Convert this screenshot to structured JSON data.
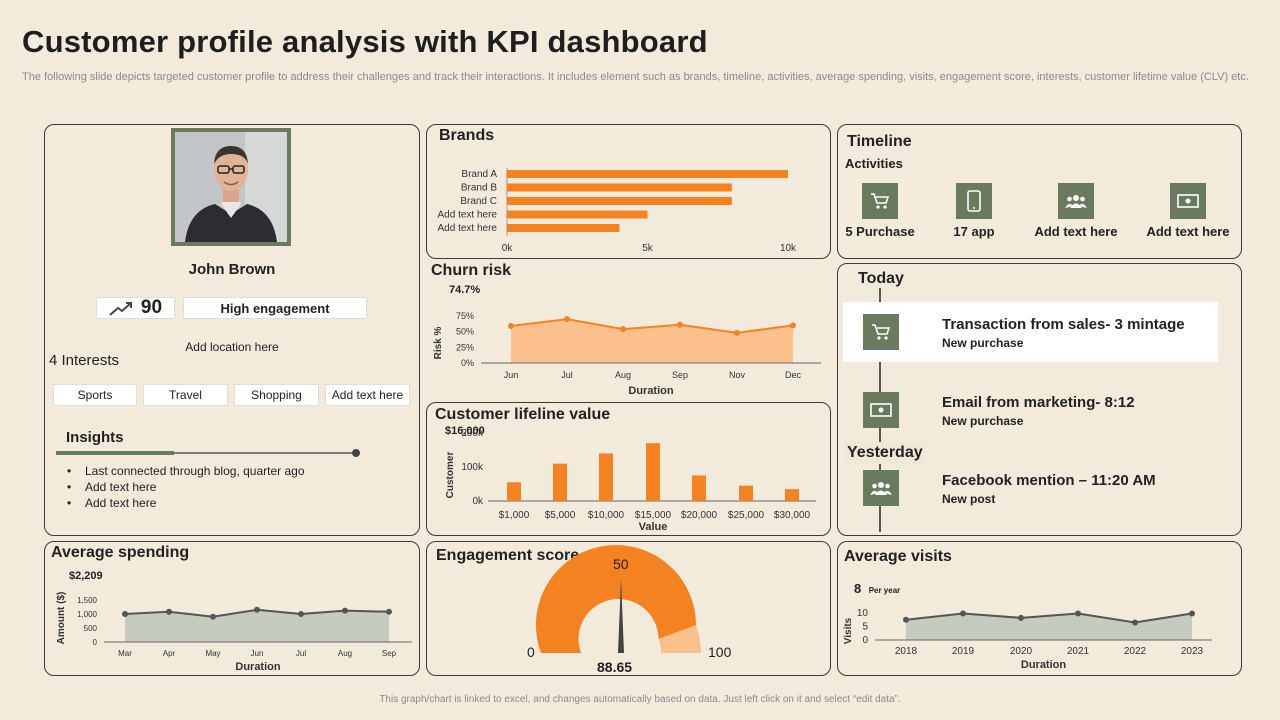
{
  "title": "Customer profile analysis with KPI dashboard",
  "subtitle": "The following slide depicts targeted customer profile to address their challenges and track their interactions. It includes element such as brands, timeline, activities, average spending, visits, engagement score, interests, customer lifetime value (CLV) etc.",
  "footer": "This graph/chart is linked to excel, and changes automatically based on data. Just left click on it and select “edit data”.",
  "profile": {
    "name": "John Brown",
    "score": "90",
    "engagement": "High engagement",
    "location": "Add location here",
    "interests_title": "4 Interests",
    "interests": [
      "Sports",
      "Travel",
      "Shopping",
      "Add text here"
    ],
    "insights_title": "Insights",
    "insights": [
      "Last connected through  blog, quarter ago",
      "Add text here",
      "Add text here"
    ]
  },
  "colors": {
    "accent": "#f58220",
    "olive": "#6a7a5e",
    "bg": "#f2ebdc",
    "area_light": "#fcc08c",
    "area_grey": "#c5cbbd"
  },
  "brands": {
    "title": "Brands",
    "chart_data": {
      "type": "bar",
      "categories": [
        "Brand A",
        "Brand B",
        "Brand C",
        "Add text here",
        "Add text here"
      ],
      "values": [
        10000,
        8000,
        8000,
        5000,
        4000
      ],
      "xlim": [
        0,
        10000
      ],
      "ticks": [
        "0k",
        "5k",
        "10k"
      ]
    }
  },
  "churn": {
    "title": "Churn risk",
    "value": "74.7%",
    "chart_data": {
      "type": "area",
      "categories": [
        "Jun",
        "Jul",
        "Aug",
        "Sep",
        "Nov",
        "Dec"
      ],
      "values": [
        59,
        70,
        54,
        61,
        48,
        60
      ],
      "ylim": [
        0,
        75
      ],
      "yticks": [
        "0%",
        "25%",
        "50%",
        "75%"
      ],
      "xlabel": "Duration",
      "ylabel": "Risk %"
    }
  },
  "clv": {
    "title": "Customer lifeline value",
    "value": "$16,000",
    "chart_data": {
      "type": "bar",
      "categories": [
        "$1,000",
        "$5,000",
        "$10,000",
        "$15,000",
        "$20,000",
        "$25,000",
        "$30,000"
      ],
      "values": [
        55000,
        110000,
        140000,
        170000,
        75000,
        45000,
        35000
      ],
      "ylim": [
        0,
        200000
      ],
      "yticks": [
        "0k",
        "100k",
        "200k"
      ],
      "xlabel": "Value",
      "ylabel": "Customer"
    }
  },
  "spending": {
    "title": "Average spending",
    "value": "$2,209",
    "chart_data": {
      "type": "area",
      "categories": [
        "Mar",
        "Apr",
        "May",
        "Jun",
        "Jul",
        "Aug",
        "Sep"
      ],
      "values": [
        1000,
        1080,
        900,
        1150,
        1000,
        1120,
        1080
      ],
      "ylim": [
        0,
        1500
      ],
      "yticks": [
        "0",
        "500",
        "1,000",
        "1,500"
      ],
      "xlabel": "Duration",
      "ylabel": "Amount ($)"
    }
  },
  "engagement_score": {
    "title": "Engagement score",
    "min_label": "0",
    "mid_label": "50",
    "max_label": "100",
    "value": "88.65",
    "chart_data": {
      "type": "gauge",
      "value": 88.65,
      "min": 0,
      "max": 100
    }
  },
  "visits": {
    "title": "Average visits",
    "value": "8",
    "value_unit": "Per year",
    "chart_data": {
      "type": "area",
      "categories": [
        "2018",
        "2019",
        "2020",
        "2021",
        "2022",
        "2023"
      ],
      "values": [
        7.5,
        9.8,
        8.2,
        9.8,
        6.5,
        9.8
      ],
      "ylim": [
        0,
        10
      ],
      "yticks": [
        "0",
        "5",
        "10"
      ],
      "xlabel": "Duration",
      "ylabel": "Visits"
    }
  },
  "timeline": {
    "title": "Timeline",
    "activities_label": "Activities",
    "activities": [
      {
        "label": "5 Purchase",
        "icon": "cart-icon"
      },
      {
        "label": "17 app",
        "icon": "phone-icon"
      },
      {
        "label": "Add text here",
        "icon": "group-icon"
      },
      {
        "label": "Add text here",
        "icon": "money-icon"
      }
    ],
    "today_label": "Today",
    "yesterday_label": "Yesterday",
    "events": [
      {
        "title": "Transaction from sales- 3 mintage",
        "sub": "New purchase",
        "icon": "cart-icon"
      },
      {
        "title": "Email from marketing- 8:12",
        "sub": "New purchase",
        "icon": "money-icon"
      },
      {
        "title": "Facebook mention – 11:20 AM",
        "sub": "New post",
        "icon": "group-icon"
      }
    ]
  }
}
